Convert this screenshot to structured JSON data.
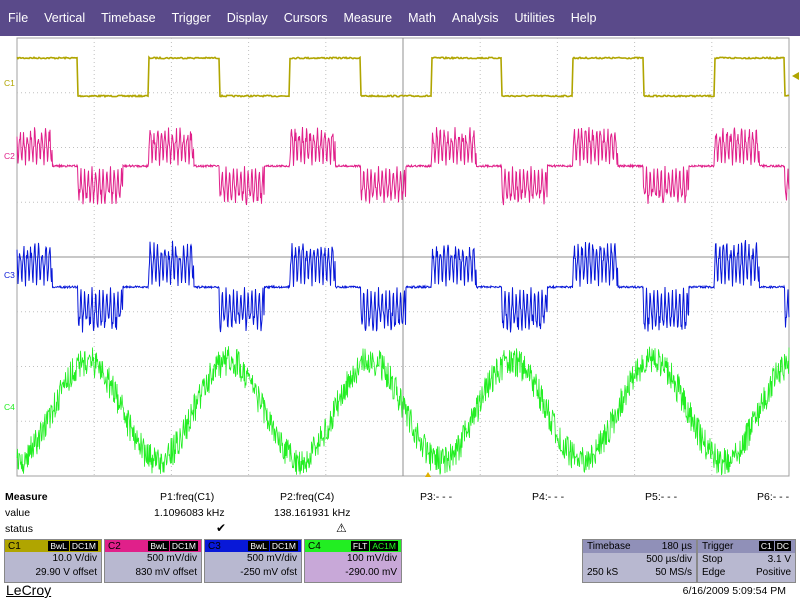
{
  "menu": [
    "File",
    "Vertical",
    "Timebase",
    "Trigger",
    "Display",
    "Cursors",
    "Measure",
    "Math",
    "Analysis",
    "Utilities",
    "Help"
  ],
  "channels": [
    {
      "label": "C1",
      "color": "#b0a500"
    },
    {
      "label": "C2",
      "color": "#e0208a"
    },
    {
      "label": "C3",
      "color": "#0818d8"
    },
    {
      "label": "C4",
      "color": "#22ee22"
    }
  ],
  "measure": {
    "title": "Measure",
    "row_value": "value",
    "row_status": "status",
    "params": [
      {
        "name": "P1:freq(C1)",
        "value": "1.1096083 kHz",
        "status": "check"
      },
      {
        "name": "P2:freq(C4)",
        "value": "138.161931 kHz",
        "status": "warning"
      },
      {
        "name": "P3:- - -",
        "value": "",
        "status": ""
      },
      {
        "name": "P4:- - -",
        "value": "",
        "status": ""
      },
      {
        "name": "P5:- - -",
        "value": "",
        "status": ""
      },
      {
        "name": "P6:- - -",
        "value": "",
        "status": ""
      }
    ]
  },
  "ch_panels": [
    {
      "label": "C1",
      "tag1": "BwL",
      "tag2": "DC1M",
      "scale": "10.0 V/div",
      "offset": "29.90 V offset",
      "color": "#b0a500"
    },
    {
      "label": "C2",
      "tag1": "BwL",
      "tag2": "DC1M",
      "scale": "500 mV/div",
      "offset": "830 mV offset",
      "color": "#e0208a"
    },
    {
      "label": "C3",
      "tag1": "BwL",
      "tag2": "DC1M",
      "scale": "500 mV/div",
      "offset": "-250 mV ofst",
      "color": "#0818d8"
    },
    {
      "label": "C4",
      "tag1": "FLT",
      "tag2": "AC1M",
      "scale": "100 mV/div",
      "offset": "-290.00 mV",
      "color": "#22ee22"
    }
  ],
  "timebase": {
    "title": "Timebase",
    "delay": "180 µs",
    "per_div": "500 µs/div",
    "samples": "250 kS",
    "rate": "50 MS/s"
  },
  "trigger": {
    "title": "Trigger",
    "source": "C1",
    "coupling": "DC",
    "mode": "Stop",
    "level": "3.1 V",
    "type": "Edge",
    "slope": "Positive"
  },
  "footer": {
    "brand": "LeCroy",
    "datetime": "6/16/2009 5:09:54 PM"
  }
}
